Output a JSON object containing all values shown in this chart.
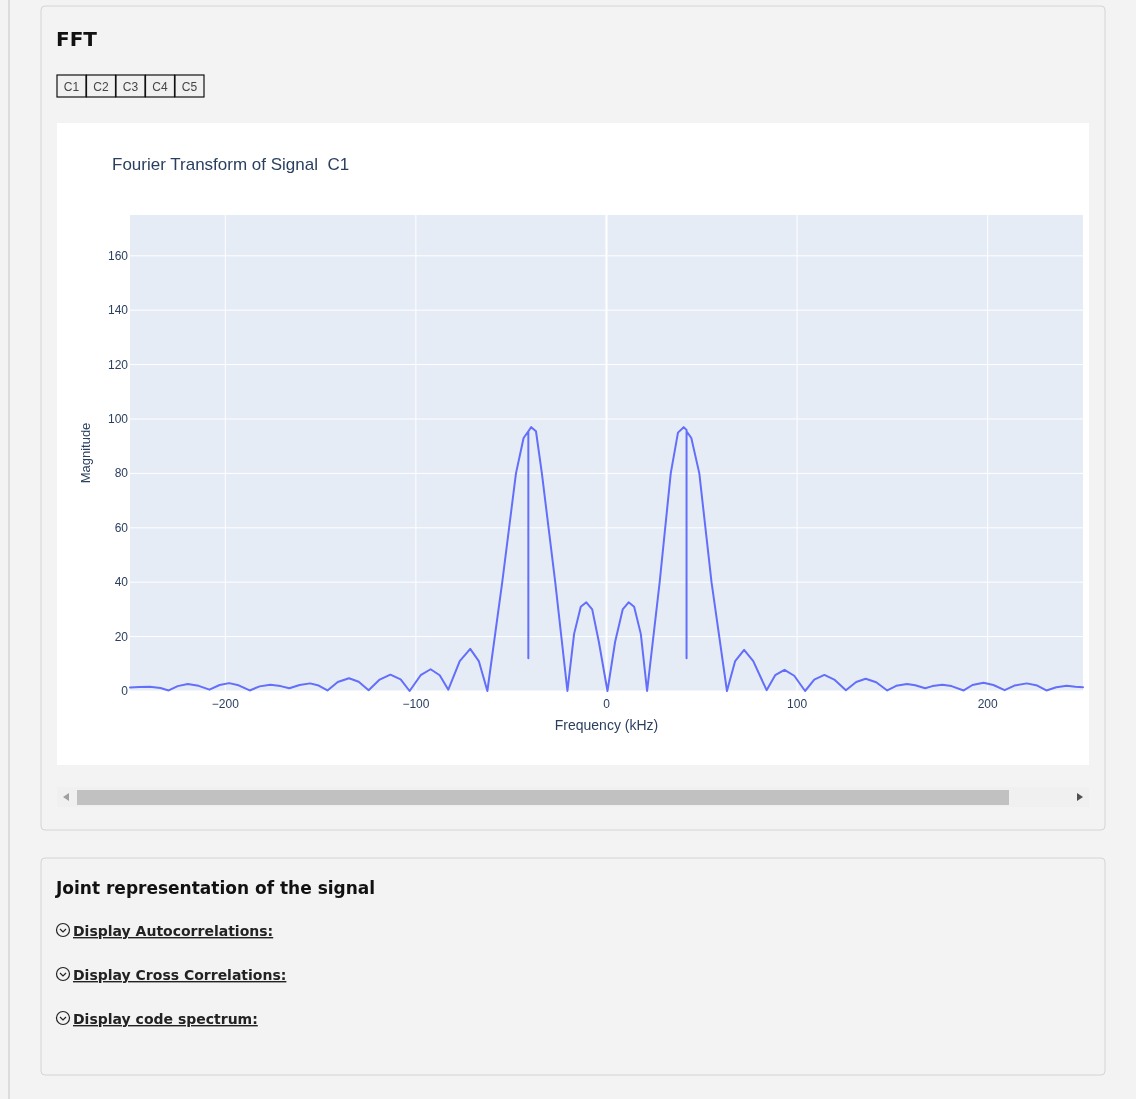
{
  "chart_data": {
    "type": "line",
    "title": "Fourier Transform of Signal  C1",
    "xlabel": "Frequency (kHz)",
    "ylabel": "Magnitude",
    "annotations": [
      "FFT",
      "C1",
      "C2",
      "C3",
      "C4",
      "C5",
      "Joint representation of the signal",
      "Display Autocorrelations:",
      "Display Cross Correlations:",
      "Display code spectrum:"
    ],
    "series": [
      {
        "color": "#636efa",
        "x": [
          -250,
          -245,
          -239.6,
          -234,
          -229.7,
          -225,
          -219.7,
          -214,
          -208.3,
          -203,
          -198,
          -193,
          -187.2,
          -182,
          -176.4,
          -171,
          -166.4,
          -161,
          -155.5,
          -151,
          -146.4,
          -141,
          -135.1,
          -130,
          -124.8,
          -119,
          -113.4,
          -108,
          -103.3,
          -97.5,
          -92.3,
          -87.5,
          -83,
          -77,
          -71.5,
          -67,
          -62.5,
          -54.7,
          -47.5,
          -43.5,
          -41,
          -41,
          -41,
          -39.5,
          -37,
          -33.9,
          -26.9,
          -20.5,
          -17,
          -13.5,
          -10.6,
          -7.5,
          -4,
          0.5,
          4.5,
          8.5,
          11.6,
          14.5,
          18,
          21.3,
          27.9,
          33.7,
          37.5,
          40.5,
          42,
          42,
          42,
          44.5,
          48.7,
          55.1,
          63.2,
          67.5,
          72.2,
          77,
          84,
          88.5,
          93.4,
          98.5,
          104.2,
          109,
          114.3,
          119.5,
          125.6,
          131,
          136,
          141.5,
          147.3,
          152,
          157.7,
          162,
          167.2,
          171,
          176.2,
          181,
          187.4,
          192,
          197.8,
          203,
          208.9,
          214,
          220.5,
          226,
          230.8,
          236,
          241.5,
          246,
          250
        ],
        "values": [
          1.3,
          1.5,
          1.6,
          1.1,
          0.2,
          1.8,
          2.6,
          1.9,
          0.5,
          2.2,
          2.9,
          2.1,
          0.2,
          1.7,
          2.3,
          1.8,
          1.0,
          2.2,
          2.8,
          2.0,
          0.2,
          3.3,
          4.7,
          3.4,
          0.3,
          4.2,
          6,
          4.3,
          0,
          5.8,
          8,
          5.8,
          0.5,
          11,
          15.5,
          11,
          0,
          40,
          80,
          93,
          95.5,
          12,
          95.5,
          97,
          95.5,
          80,
          40,
          0,
          21,
          31,
          32.6,
          30,
          18,
          0,
          18,
          30,
          32.6,
          31,
          21,
          0,
          40,
          80,
          95,
          97,
          96,
          12,
          95.5,
          93,
          80,
          40,
          0,
          11,
          15.1,
          11,
          0.3,
          5.8,
          7.8,
          5.6,
          0,
          4.2,
          5.9,
          4.2,
          0.3,
          3.3,
          4.5,
          3.2,
          0.2,
          1.9,
          2.6,
          2.1,
          1.0,
          1.8,
          2.3,
          1.8,
          0.2,
          2.2,
          3.0,
          2.2,
          0.3,
          2.0,
          2.8,
          2.0,
          0.2,
          1.4,
          1.9,
          1.6,
          1.4
        ]
      }
    ],
    "xlim": [
      -250,
      250
    ],
    "ylim": [
      0,
      175
    ],
    "xticks": [
      {
        "value": -200,
        "label": "−200"
      },
      {
        "value": -100,
        "label": "−100"
      },
      0,
      100,
      200
    ],
    "yticks": [
      0,
      20,
      40,
      60,
      80,
      100,
      120,
      140,
      160
    ],
    "grid": true
  }
}
